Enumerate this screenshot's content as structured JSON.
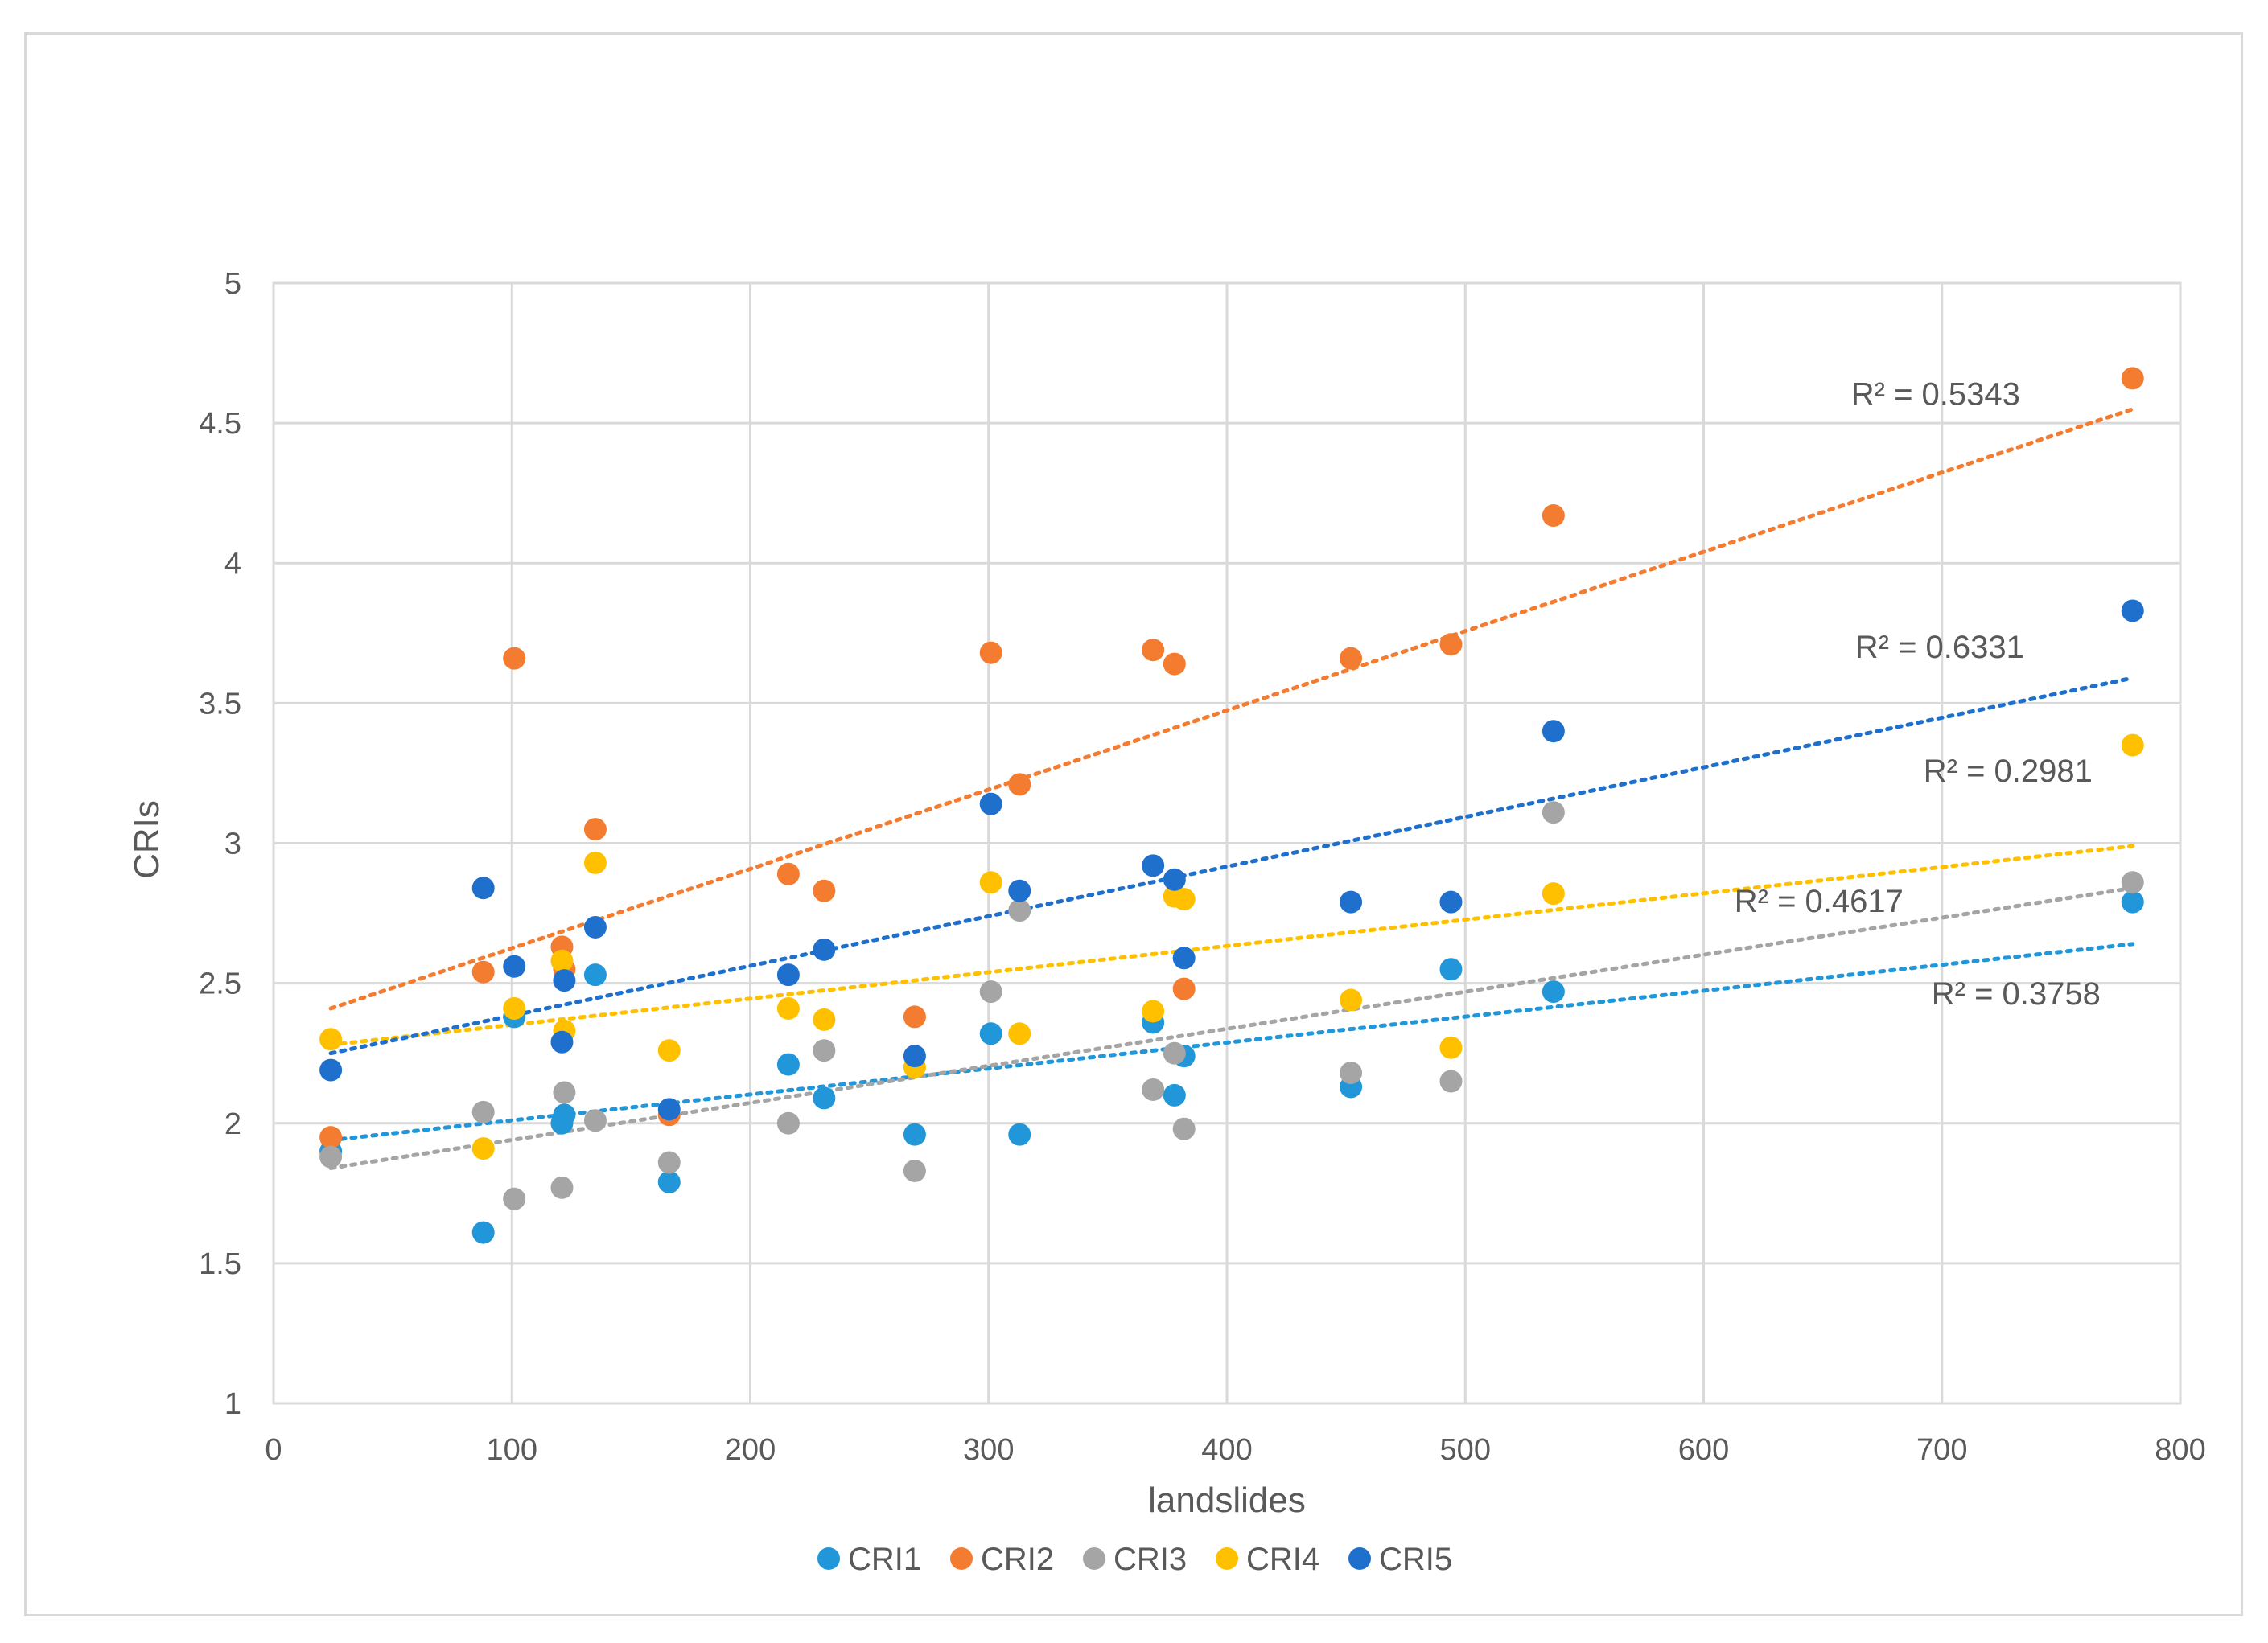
{
  "chart_data": {
    "type": "scatter",
    "title": "",
    "xlabel": "landslides",
    "ylabel": "CRIs",
    "xlim": [
      0,
      800
    ],
    "ylim": [
      1,
      5
    ],
    "x_ticks": [
      "0",
      "100",
      "200",
      "300",
      "400",
      "500",
      "600",
      "700",
      "800"
    ],
    "y_ticks": [
      "1",
      "1.5",
      "2",
      "2.5",
      "3",
      "3.5",
      "4",
      "4.5",
      "5"
    ],
    "grid": true,
    "legend_position": "bottom",
    "x": [
      24,
      88,
      101,
      121,
      122,
      135,
      166,
      216,
      231,
      269,
      301,
      313,
      369,
      378,
      382,
      452,
      494,
      537,
      780
    ],
    "series": [
      {
        "name": "CRI1",
        "color": "#2196d8",
        "values": [
          1.9,
          1.61,
          2.38,
          2.0,
          2.03,
          2.53,
          1.79,
          2.21,
          2.09,
          1.96,
          2.32,
          1.96,
          2.36,
          2.1,
          2.24,
          2.13,
          2.55,
          2.47,
          2.79
        ],
        "trendline": {
          "start": 1.94,
          "end": 2.64
        },
        "r2_label": "R² = 0.3758"
      },
      {
        "name": "CRI2",
        "color": "#f47c30",
        "values": [
          1.95,
          2.54,
          3.66,
          2.63,
          2.55,
          3.05,
          2.03,
          2.89,
          2.83,
          2.38,
          3.68,
          3.21,
          3.69,
          3.64,
          2.48,
          3.66,
          3.71,
          4.17,
          4.66
        ],
        "trendline": {
          "start": 2.41,
          "end": 4.55
        },
        "r2_label": "R² = 0.5343"
      },
      {
        "name": "CRI3",
        "color": "#a5a5a5",
        "values": [
          1.88,
          2.04,
          1.73,
          1.77,
          2.11,
          2.01,
          1.86,
          2.0,
          2.26,
          1.83,
          2.47,
          2.76,
          2.12,
          2.25,
          1.98,
          2.18,
          2.15,
          3.11,
          2.86
        ],
        "trendline": {
          "start": 1.84,
          "end": 2.84
        },
        "r2_label": "R² = 0.4617"
      },
      {
        "name": "CRI4",
        "color": "#ffc000",
        "values": [
          2.3,
          1.91,
          2.41,
          2.58,
          2.33,
          2.93,
          2.26,
          2.41,
          2.37,
          2.2,
          2.86,
          2.32,
          2.4,
          2.81,
          2.8,
          2.44,
          2.27,
          2.82,
          3.35
        ],
        "trendline": {
          "start": 2.28,
          "end": 2.99
        },
        "r2_label": "R² = 0.2981"
      },
      {
        "name": "CRI5",
        "color": "#1f6fcc",
        "values": [
          2.19,
          2.84,
          2.56,
          2.29,
          2.51,
          2.7,
          2.05,
          2.53,
          2.62,
          2.24,
          3.14,
          2.83,
          2.92,
          2.87,
          2.59,
          2.79,
          2.79,
          3.4,
          3.83
        ],
        "trendline": {
          "start": 2.25,
          "end": 3.59
        },
        "r2_label": "R² = 0.6331"
      }
    ]
  }
}
